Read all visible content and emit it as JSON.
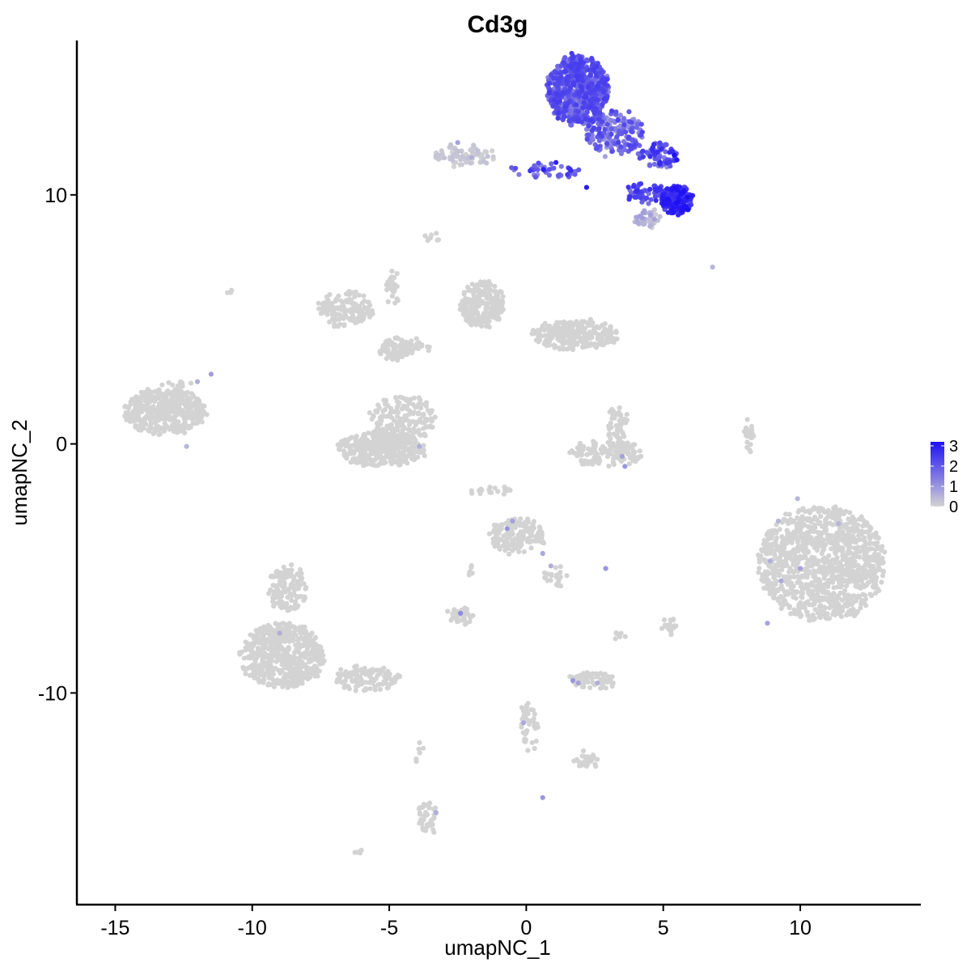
{
  "chart_data": {
    "type": "scatter",
    "title": "Cd3g",
    "xlabel": "umapNC_1",
    "ylabel": "umapNC_2",
    "xlim": [
      -16.4,
      14.4
    ],
    "ylim": [
      -18.5,
      16.2
    ],
    "x_ticks": [
      -15,
      -10,
      -5,
      0,
      5,
      10
    ],
    "y_ticks": [
      -10,
      0,
      10
    ],
    "x_tick_labels": [
      "-15",
      "-10",
      "-5",
      "0",
      "5",
      "10"
    ],
    "y_tick_labels": [
      "-10",
      "0",
      "10"
    ],
    "grid": false,
    "point_color_low": "#d3d3d3",
    "point_color_high": "#1e10f5",
    "legend": {
      "placement": "right",
      "type": "colorbar",
      "range": [
        0,
        3.2
      ],
      "ticks": [
        0,
        1,
        2,
        3
      ],
      "tick_labels": [
        "0",
        "1",
        "2",
        "3"
      ]
    },
    "clusters": [
      {
        "cx": 1.9,
        "cy": 14.2,
        "rx": 1.1,
        "ry": 1.4,
        "n": 700,
        "expr": [
          1.2,
          2.5
        ]
      },
      {
        "cx": 3.2,
        "cy": 12.5,
        "rx": 1.1,
        "ry": 0.9,
        "n": 180,
        "expr": [
          0.8,
          2.4
        ]
      },
      {
        "cx": 4.8,
        "cy": 11.6,
        "rx": 0.7,
        "ry": 0.5,
        "n": 80,
        "expr": [
          1.0,
          2.8
        ]
      },
      {
        "cx": 5.5,
        "cy": 9.8,
        "rx": 0.55,
        "ry": 0.55,
        "n": 160,
        "expr": [
          2.0,
          3.2
        ]
      },
      {
        "cx": 4.4,
        "cy": 10.1,
        "rx": 0.8,
        "ry": 0.4,
        "n": 60,
        "expr": [
          1.5,
          2.8
        ]
      },
      {
        "cx": 4.4,
        "cy": 9.0,
        "rx": 0.45,
        "ry": 0.4,
        "n": 40,
        "expr": [
          0,
          0.9
        ]
      },
      {
        "cx": 0.8,
        "cy": 11.0,
        "rx": 1.3,
        "ry": 0.3,
        "n": 45,
        "expr": [
          1.0,
          3.0
        ]
      },
      {
        "cx": -2.2,
        "cy": 11.6,
        "rx": 1.1,
        "ry": 0.4,
        "n": 70,
        "expr": [
          0,
          0.3
        ]
      },
      {
        "cx": -13.2,
        "cy": 1.3,
        "rx": 1.5,
        "ry": 0.9,
        "n": 450,
        "expr": [
          0,
          0
        ]
      },
      {
        "cx": -6.6,
        "cy": 5.4,
        "rx": 1.0,
        "ry": 0.7,
        "n": 140,
        "expr": [
          0,
          0
        ]
      },
      {
        "cx": -4.8,
        "cy": 3.8,
        "rx": 0.6,
        "ry": 0.4,
        "n": 90,
        "expr": [
          0,
          0
        ]
      },
      {
        "cx": -5.3,
        "cy": -0.2,
        "rx": 1.6,
        "ry": 0.65,
        "n": 380,
        "expr": [
          0,
          0
        ]
      },
      {
        "cx": -4.5,
        "cy": 1.0,
        "rx": 1.2,
        "ry": 0.9,
        "n": 160,
        "expr": [
          0,
          0
        ]
      },
      {
        "cx": -1.6,
        "cy": 5.6,
        "rx": 0.8,
        "ry": 0.9,
        "n": 220,
        "expr": [
          0,
          0
        ]
      },
      {
        "cx": 1.8,
        "cy": 4.4,
        "rx": 1.6,
        "ry": 0.6,
        "n": 260,
        "expr": [
          0,
          0
        ]
      },
      {
        "cx": 10.8,
        "cy": -4.8,
        "rx": 2.3,
        "ry": 2.3,
        "n": 1100,
        "expr": [
          0,
          0
        ]
      },
      {
        "cx": -8.9,
        "cy": -8.5,
        "rx": 1.5,
        "ry": 1.3,
        "n": 550,
        "expr": [
          0,
          0
        ]
      },
      {
        "cx": -8.7,
        "cy": -5.8,
        "rx": 0.7,
        "ry": 0.9,
        "n": 120,
        "expr": [
          0,
          0
        ]
      },
      {
        "cx": -5.8,
        "cy": -9.4,
        "rx": 1.2,
        "ry": 0.5,
        "n": 110,
        "expr": [
          0,
          0
        ]
      },
      {
        "cx": -0.3,
        "cy": -3.7,
        "rx": 1.0,
        "ry": 0.7,
        "n": 160,
        "expr": [
          0,
          0
        ]
      },
      {
        "cx": 2.9,
        "cy": -0.4,
        "rx": 1.3,
        "ry": 0.5,
        "n": 130,
        "expr": [
          0,
          0
        ]
      },
      {
        "cx": 3.3,
        "cy": 0.8,
        "rx": 0.4,
        "ry": 0.7,
        "n": 50,
        "expr": [
          0,
          0
        ]
      },
      {
        "cx": -2.4,
        "cy": -6.9,
        "rx": 0.5,
        "ry": 0.3,
        "n": 45,
        "expr": [
          0,
          0
        ]
      },
      {
        "cx": 2.4,
        "cy": -9.5,
        "rx": 0.8,
        "ry": 0.35,
        "n": 70,
        "expr": [
          0,
          0
        ]
      },
      {
        "cx": 0.1,
        "cy": -11.3,
        "rx": 0.3,
        "ry": 1.0,
        "n": 45,
        "expr": [
          0,
          0
        ]
      },
      {
        "cx": 2.2,
        "cy": -12.7,
        "rx": 0.4,
        "ry": 0.25,
        "n": 30,
        "expr": [
          0,
          0
        ]
      },
      {
        "cx": -3.6,
        "cy": -15.0,
        "rx": 0.35,
        "ry": 0.6,
        "n": 45,
        "expr": [
          0,
          0
        ]
      },
      {
        "cx": 8.1,
        "cy": 0.3,
        "rx": 0.15,
        "ry": 0.6,
        "n": 20,
        "expr": [
          0,
          0
        ]
      },
      {
        "cx": -4.9,
        "cy": 6.2,
        "rx": 0.25,
        "ry": 0.8,
        "n": 25,
        "expr": [
          0,
          0
        ]
      },
      {
        "cx": -4.0,
        "cy": 3.9,
        "rx": 0.6,
        "ry": 0.3,
        "n": 25,
        "expr": [
          0,
          0
        ]
      },
      {
        "cx": -1.3,
        "cy": -1.9,
        "rx": 0.8,
        "ry": 0.2,
        "n": 20,
        "expr": [
          0,
          0
        ]
      },
      {
        "cx": 5.2,
        "cy": -7.3,
        "rx": 0.3,
        "ry": 0.3,
        "n": 20,
        "expr": [
          0,
          0
        ]
      },
      {
        "cx": 1.1,
        "cy": -5.3,
        "rx": 0.4,
        "ry": 0.4,
        "n": 20,
        "expr": [
          0,
          0
        ]
      },
      {
        "cx": -12.8,
        "cy": 2.3,
        "rx": 0.6,
        "ry": 0.4,
        "n": 12,
        "expr": [
          0,
          0
        ]
      },
      {
        "cx": -3.4,
        "cy": 8.3,
        "rx": 0.3,
        "ry": 0.2,
        "n": 8,
        "expr": [
          0,
          0
        ]
      },
      {
        "cx": -10.8,
        "cy": 6.1,
        "rx": 0.1,
        "ry": 0.1,
        "n": 3,
        "expr": [
          0,
          0
        ]
      },
      {
        "cx": -2.0,
        "cy": -5.1,
        "rx": 0.1,
        "ry": 0.3,
        "n": 6,
        "expr": [
          0,
          0
        ]
      },
      {
        "cx": -6.0,
        "cy": -16.4,
        "rx": 0.2,
        "ry": 0.1,
        "n": 5,
        "expr": [
          0,
          0
        ]
      },
      {
        "cx": -3.9,
        "cy": -12.5,
        "rx": 0.1,
        "ry": 0.4,
        "n": 6,
        "expr": [
          0,
          0
        ]
      },
      {
        "cx": 3.4,
        "cy": -7.7,
        "rx": 0.15,
        "ry": 0.2,
        "n": 6,
        "expr": [
          0,
          0
        ]
      }
    ],
    "highlighted_points": [
      {
        "x": 5.4,
        "y": 11.6,
        "v": 3.2
      },
      {
        "x": 5.5,
        "y": 11.4,
        "v": 3.1
      },
      {
        "x": 5.9,
        "y": 9.4,
        "v": 3.2
      },
      {
        "x": 5.7,
        "y": 9.7,
        "v": 3.0
      },
      {
        "x": 6.8,
        "y": 7.1,
        "v": 0.5
      },
      {
        "x": 2.2,
        "y": 10.3,
        "v": 3.0
      },
      {
        "x": -2.0,
        "y": 11.5,
        "v": 0.6
      },
      {
        "x": -2.5,
        "y": 12.1,
        "v": 0.8
      },
      {
        "x": -11.5,
        "y": 2.8,
        "v": 0.9
      },
      {
        "x": -12.0,
        "y": 2.5,
        "v": 0.6
      },
      {
        "x": -12.4,
        "y": -0.1,
        "v": 0.5
      },
      {
        "x": -3.9,
        "y": -0.1,
        "v": 0.6
      },
      {
        "x": 3.5,
        "y": -0.5,
        "v": 0.8
      },
      {
        "x": 3.6,
        "y": -0.9,
        "v": 1.0
      },
      {
        "x": -0.7,
        "y": -3.4,
        "v": 1.0
      },
      {
        "x": -0.5,
        "y": -3.1,
        "v": 0.8
      },
      {
        "x": 0.6,
        "y": -4.4,
        "v": 0.7
      },
      {
        "x": 0.9,
        "y": -4.9,
        "v": 0.6
      },
      {
        "x": 2.9,
        "y": -5.0,
        "v": 1.0
      },
      {
        "x": -2.4,
        "y": -6.8,
        "v": 1.2
      },
      {
        "x": -9.0,
        "y": -7.6,
        "v": 0.6
      },
      {
        "x": 1.7,
        "y": -9.5,
        "v": 1.0
      },
      {
        "x": 1.9,
        "y": -9.6,
        "v": 0.8
      },
      {
        "x": 2.6,
        "y": -9.6,
        "v": 0.6
      },
      {
        "x": -0.1,
        "y": -11.2,
        "v": 0.7
      },
      {
        "x": 0.6,
        "y": -14.2,
        "v": 1.0
      },
      {
        "x": -3.3,
        "y": -14.8,
        "v": 0.6
      },
      {
        "x": 10.0,
        "y": -5.0,
        "v": 0.8
      },
      {
        "x": 9.3,
        "y": -5.5,
        "v": 0.7
      },
      {
        "x": 8.8,
        "y": -7.2,
        "v": 0.8
      },
      {
        "x": 9.9,
        "y": -2.2,
        "v": 0.5
      },
      {
        "x": 11.4,
        "y": -3.2,
        "v": 0.5
      },
      {
        "x": 8.9,
        "y": -4.7,
        "v": 0.6
      },
      {
        "x": 9.2,
        "y": -3.1,
        "v": 0.5
      }
    ]
  }
}
